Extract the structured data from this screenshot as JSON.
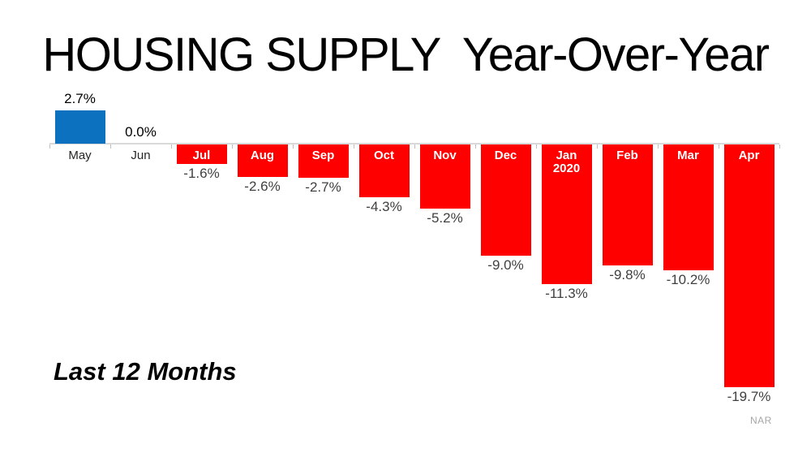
{
  "page": {
    "title": "HOUSING SUPPLY  Year-Over-Year",
    "annotation": "Last 12 Months",
    "source": "NAR"
  },
  "chart_data": {
    "type": "bar",
    "title": "HOUSING SUPPLY  Year-Over-Year",
    "series_name": "Housing supply year-over-year percent change",
    "categories": [
      "May",
      "Jun",
      "Jul",
      "Aug",
      "Sep",
      "Oct",
      "Nov",
      "Dec",
      "Jan 2020",
      "Feb",
      "Mar",
      "Apr"
    ],
    "values": [
      2.7,
      0.0,
      -1.6,
      -2.6,
      -2.7,
      -4.3,
      -5.2,
      -9.0,
      -11.3,
      -9.8,
      -10.2,
      -19.7
    ],
    "value_labels": [
      "2.7%",
      "0.0%",
      "-1.6%",
      "-2.6%",
      "-2.7%",
      "-4.3%",
      "-5.2%",
      "-9.0%",
      "-11.3%",
      "-9.8%",
      "-10.2%",
      "-19.7%"
    ],
    "xlabel": "",
    "ylabel": "",
    "ylim": [
      -20,
      3
    ],
    "grid": false,
    "legend": false,
    "annotation": "Last 12 Months",
    "source": "NAR",
    "colors": {
      "positive_bar": "#0C72BF",
      "negative_bar": "#FE0000",
      "axis_line": "#D9D9D9",
      "axis_tick": "#BFBFBF",
      "positive_value_label": "#000000",
      "negative_value_label": "#404040",
      "category_label": "#262626",
      "in_bar_category_label": "#FFFFFF"
    }
  }
}
